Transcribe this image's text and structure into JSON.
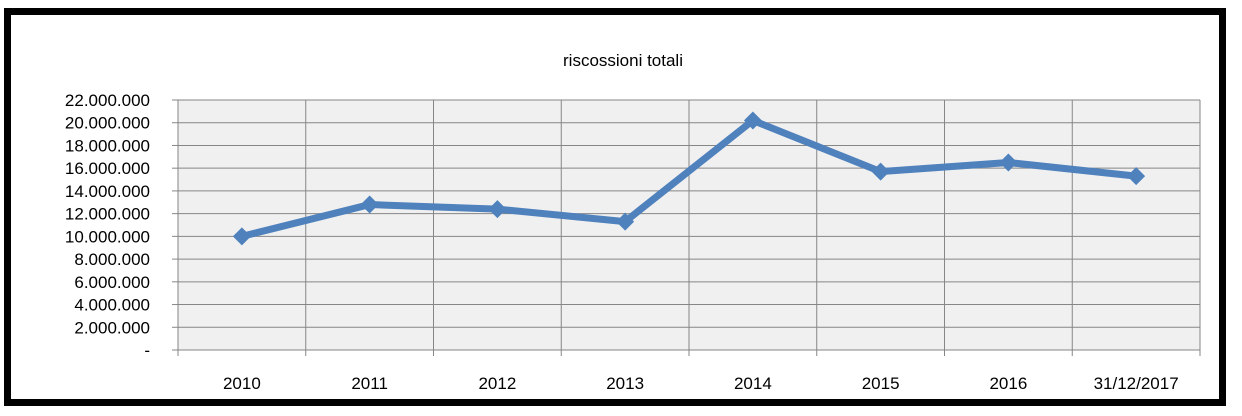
{
  "chart_data": {
    "type": "line",
    "title": "riscossioni totali",
    "xlabel": "",
    "ylabel": "",
    "categories": [
      "2010",
      "2011",
      "2012",
      "2013",
      "2014",
      "2015",
      "2016",
      "31/12/2017"
    ],
    "series": [
      {
        "values": [
          10000000,
          12800000,
          12400000,
          11300000,
          20200000,
          15700000,
          16500000,
          15300000
        ]
      }
    ],
    "ylim": [
      0,
      22000000
    ],
    "yticks": [
      0,
      2000000,
      4000000,
      6000000,
      8000000,
      10000000,
      12000000,
      14000000,
      16000000,
      18000000,
      20000000,
      22000000
    ],
    "ytick_labels": [
      "-",
      "2.000.000",
      "4.000.000",
      "6.000.000",
      "8.000.000",
      "10.000.000",
      "12.000.000",
      "14.000.000",
      "16.000.000",
      "18.000.000",
      "20.000.000",
      "22.000.000"
    ],
    "grid": true,
    "legend": "none",
    "colors": {
      "line": "#4f81bd",
      "plot_background": "#f0f0f0",
      "grid": "#868686",
      "frame": "#000000"
    }
  }
}
